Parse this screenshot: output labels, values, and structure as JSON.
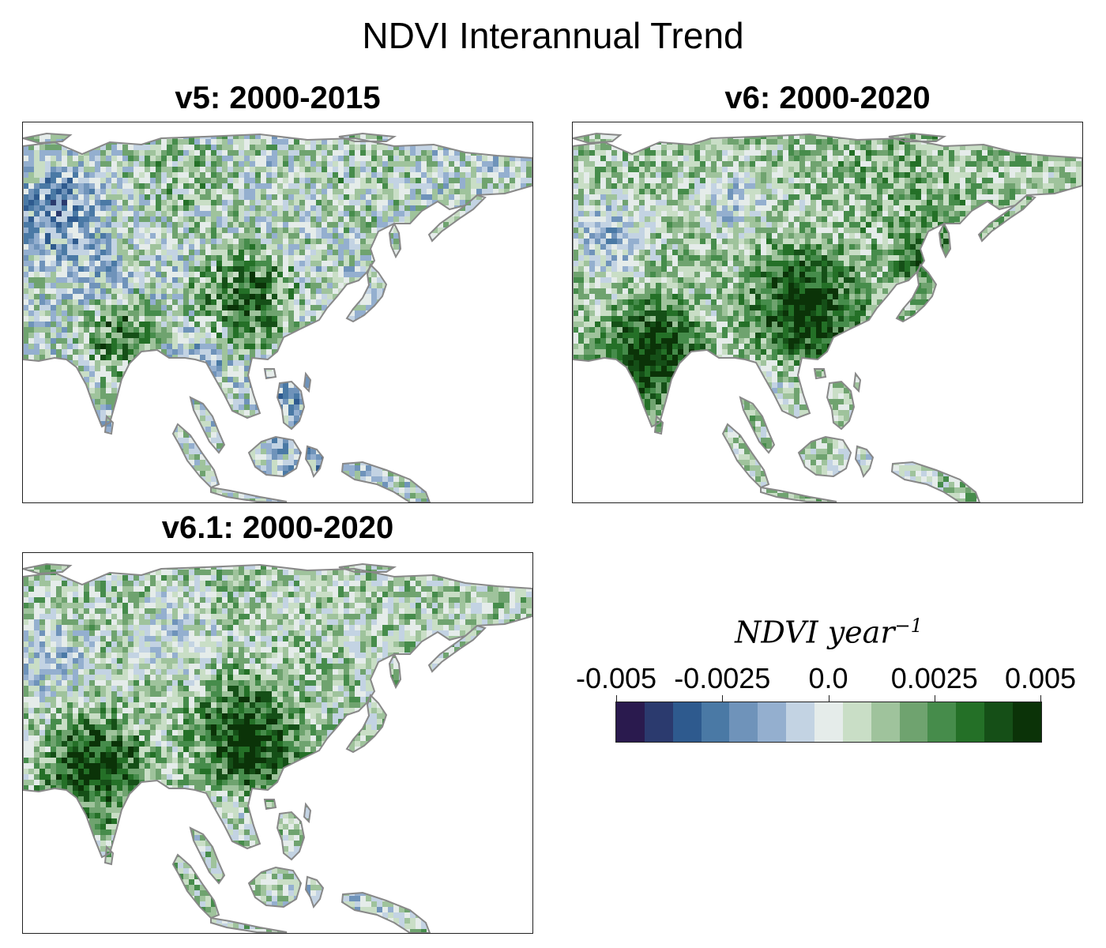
{
  "title": "NDVI Interannual Trend",
  "panels": [
    {
      "label": "v5: 2000-2015",
      "variant": "v5"
    },
    {
      "label": "v6: 2000-2020",
      "variant": "v6"
    },
    {
      "label": "v6.1: 2000-2020",
      "variant": "v61"
    }
  ],
  "colorbar": {
    "label_base": "NDVI year",
    "label_exp": "−1",
    "ticks": [
      "-0.005",
      "-0.0025",
      "0.0",
      "0.0025",
      "0.005"
    ],
    "tick_values": [
      -0.005,
      -0.0025,
      0.0,
      0.0025,
      0.005
    ],
    "range": [
      -0.005,
      0.005
    ],
    "colors": [
      "#2a1a4e",
      "#2b3a6e",
      "#2e5a8e",
      "#4a79a5",
      "#6f93ba",
      "#94afcf",
      "#c3d3e3",
      "#e5ecea",
      "#c9dec6",
      "#9fc39c",
      "#6fa36f",
      "#468c4b",
      "#247027",
      "#154f17",
      "#0b3308"
    ]
  },
  "style": {
    "land_outline": "#888888",
    "ocean": "#ffffff"
  }
}
